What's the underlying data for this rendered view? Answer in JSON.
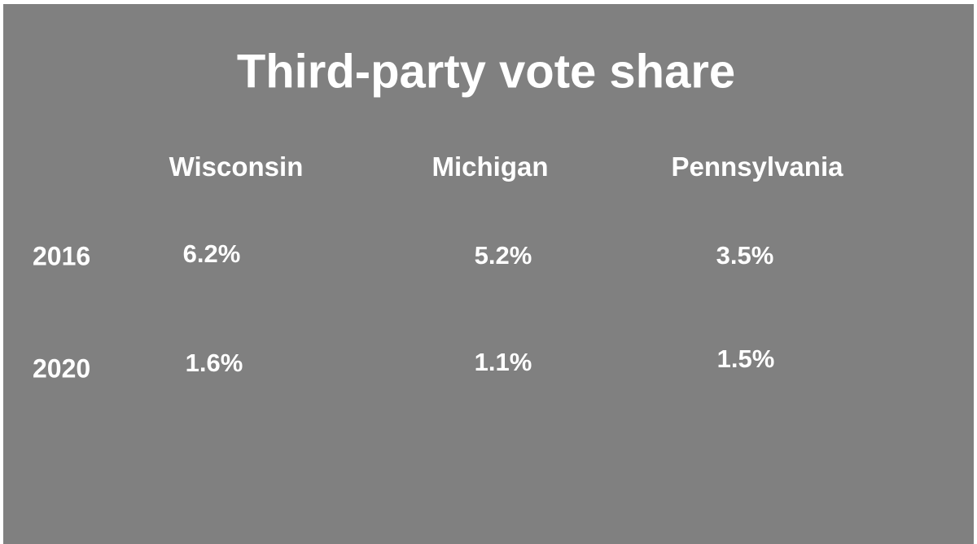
{
  "title": "Third-party vote share",
  "table": {
    "columns": [
      "Wisconsin",
      "Michigan",
      "Pennsylvania"
    ],
    "rows": [
      {
        "label": "2016",
        "cells": [
          "6.2%",
          "5.2%",
          "3.5%"
        ]
      },
      {
        "label": "2020",
        "cells": [
          "1.6%",
          "1.1%",
          "1.5%"
        ]
      }
    ]
  }
}
